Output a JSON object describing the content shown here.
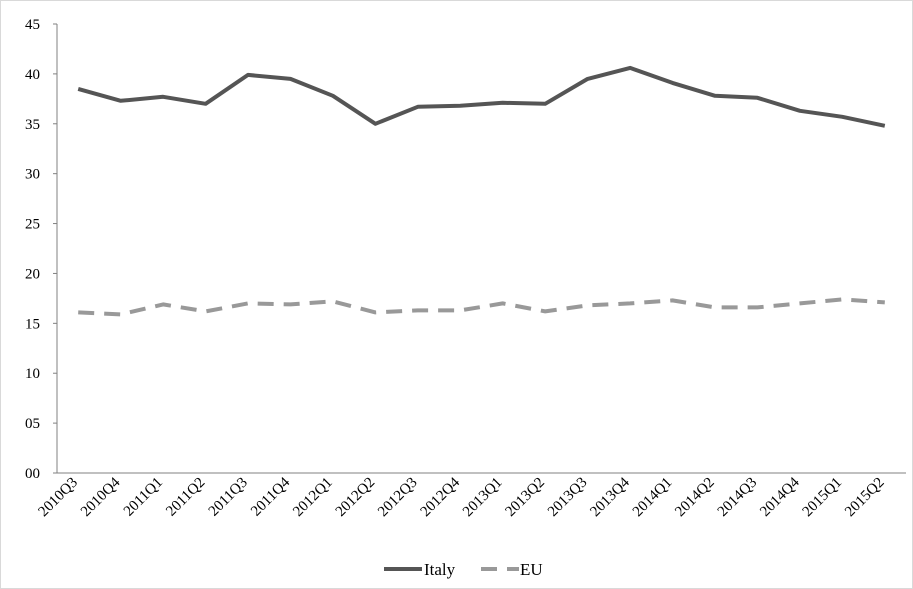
{
  "chart_data": {
    "type": "line",
    "title": "",
    "xlabel": "",
    "ylabel": "",
    "categories": [
      "2010Q3",
      "2010Q4",
      "2011Q1",
      "2011Q2",
      "2011Q3",
      "2011Q4",
      "2012Q1",
      "2012Q2",
      "2012Q3",
      "2012Q4",
      "2013Q1",
      "2013Q2",
      "2013Q3",
      "2013Q4",
      "2014Q1",
      "2014Q2",
      "2014Q3",
      "2014Q4",
      "2015Q1",
      "2015Q2"
    ],
    "ylim": [
      0,
      45
    ],
    "yticks": [
      "00",
      "05",
      "10",
      "15",
      "20",
      "25",
      "30",
      "35",
      "40",
      "45"
    ],
    "grid": false,
    "legend_position": "bottom",
    "series": [
      {
        "name": "Italy",
        "style": "solid",
        "color": "#555555",
        "values": [
          38.5,
          37.3,
          37.7,
          37.0,
          39.9,
          39.5,
          37.8,
          35.0,
          36.7,
          36.8,
          37.1,
          37.0,
          39.5,
          40.6,
          39.1,
          37.8,
          37.6,
          36.3,
          35.7,
          34.8
        ]
      },
      {
        "name": "EU",
        "style": "dashed",
        "color": "#999999",
        "values": [
          16.1,
          15.9,
          16.9,
          16.2,
          17.0,
          16.9,
          17.2,
          16.1,
          16.3,
          16.3,
          17.0,
          16.2,
          16.8,
          17.0,
          17.3,
          16.6,
          16.6,
          17.0,
          17.4,
          17.1
        ]
      }
    ]
  }
}
